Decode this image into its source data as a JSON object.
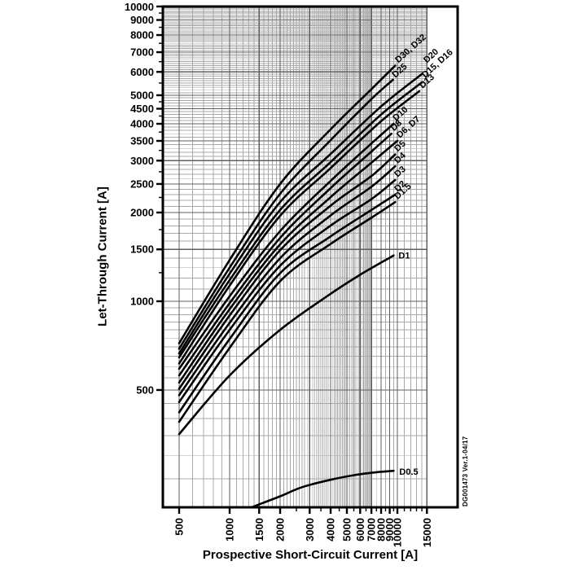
{
  "colors": {
    "background": "#ffffff",
    "curve": "#000000",
    "grid_minor": "#a9a9a9",
    "grid_major": "#5f5f5f",
    "frame": "#000000",
    "text": "#000000"
  },
  "doc_number": "DG001473  Ver.1-04/17",
  "chart_data": {
    "type": "line",
    "title": "",
    "xlabel": "Prospective Short-Circuit Current [A]",
    "ylabel": "Let-Through Current [A]",
    "x_scale": "log",
    "y_scale": "log",
    "xlim": [
      400,
      23000
    ],
    "ylim": [
      200,
      10000
    ],
    "grid_x_extent": [
      400,
      15000
    ],
    "grid": "on",
    "legend_position": "labels-at-curve-ends",
    "x_ticks_major": [
      500,
      1000,
      1500,
      2000,
      3000,
      4000,
      5000,
      6000,
      7000,
      8000,
      9000,
      10000,
      15000
    ],
    "x_ticks_minor": [
      2500,
      3500,
      4500,
      5500,
      6500,
      7500,
      8500,
      9500,
      11000,
      12000,
      13000,
      14000
    ],
    "y_ticks_major": [
      500,
      1000,
      1500,
      2000,
      2500,
      3000,
      3500,
      4000,
      4500,
      5000,
      6000,
      7000,
      8000,
      9000,
      10000
    ],
    "y_ticks_minor": [
      1250,
      1750,
      2250,
      2750,
      3250,
      3750,
      4250,
      4750,
      5500,
      6500,
      7500,
      8500,
      9500
    ],
    "x_grid_minor": [
      {
        "from": 400,
        "to": 7000,
        "step": 100
      },
      {
        "from": 7500,
        "to": 10000,
        "step": 500
      },
      {
        "from": 11000,
        "to": 15000,
        "step": 1000
      }
    ],
    "y_grid_minor": [
      {
        "from": 250,
        "to": 1000,
        "step": 50
      },
      {
        "from": 1100,
        "to": 10000,
        "step": 100
      }
    ],
    "series": [
      {
        "name": "D30-D32",
        "label": "D30, D32",
        "label_rotation": -42,
        "label_dx": 4,
        "label_dy": -3,
        "points": [
          [
            500,
            720
          ],
          [
            1000,
            1380
          ],
          [
            2000,
            2500
          ],
          [
            4000,
            3830
          ],
          [
            7000,
            5240
          ],
          [
            9700,
            6300
          ]
        ]
      },
      {
        "name": "D25",
        "label": "D25",
        "label_rotation": -42,
        "label_dx": 3,
        "label_dy": -2,
        "points": [
          [
            500,
            690
          ],
          [
            1000,
            1300
          ],
          [
            2000,
            2315
          ],
          [
            4000,
            3520
          ],
          [
            7000,
            4850
          ],
          [
            9400,
            5640
          ]
        ]
      },
      {
        "name": "D20",
        "label": "D20",
        "label_rotation": -42,
        "label_dx": 6,
        "label_dy": -13,
        "points": [
          [
            500,
            665
          ],
          [
            1000,
            1240
          ],
          [
            2000,
            2170
          ],
          [
            4000,
            3160
          ],
          [
            8000,
            4580
          ],
          [
            14000,
            5900
          ]
        ]
      },
      {
        "name": "D15-D16",
        "label": "D15, D16",
        "label_rotation": -42,
        "label_dx": 4,
        "label_dy": -5,
        "points": [
          [
            500,
            645
          ],
          [
            1000,
            1180
          ],
          [
            2000,
            2040
          ],
          [
            4000,
            2965
          ],
          [
            8000,
            4300
          ],
          [
            14000,
            5530
          ]
        ]
      },
      {
        "name": "D13",
        "label": "D13",
        "label_rotation": -42,
        "label_dx": 4,
        "label_dy": -3,
        "points": [
          [
            500,
            615
          ],
          [
            1000,
            1130
          ],
          [
            2000,
            1950
          ],
          [
            4000,
            2830
          ],
          [
            8000,
            4080
          ],
          [
            13500,
            5160
          ]
        ]
      },
      {
        "name": "D10",
        "label": "D10",
        "label_rotation": -42,
        "label_dx": 3,
        "label_dy": -3,
        "points": [
          [
            500,
            590
          ],
          [
            1000,
            1040
          ],
          [
            2000,
            1730
          ],
          [
            4000,
            2560
          ],
          [
            7000,
            3430
          ],
          [
            9500,
            4000
          ]
        ]
      },
      {
        "name": "D8",
        "label": "D8",
        "label_rotation": -42,
        "label_dx": 3,
        "label_dy": -3,
        "points": [
          [
            500,
            560
          ],
          [
            1000,
            985
          ],
          [
            2000,
            1640
          ],
          [
            4000,
            2420
          ],
          [
            7000,
            3220
          ],
          [
            9200,
            3700
          ]
        ]
      },
      {
        "name": "D6-D7",
        "label": "D6, D7",
        "label_rotation": -42,
        "label_dx": 3,
        "label_dy": -3,
        "points": [
          [
            500,
            530
          ],
          [
            1000,
            940
          ],
          [
            2000,
            1560
          ],
          [
            4000,
            2255
          ],
          [
            7000,
            2950
          ],
          [
            10000,
            3500
          ]
        ]
      },
      {
        "name": "D5",
        "label": "D5",
        "label_rotation": -42,
        "label_dx": 3,
        "label_dy": -3,
        "points": [
          [
            500,
            505
          ],
          [
            1000,
            895
          ],
          [
            2000,
            1490
          ],
          [
            4000,
            2110
          ],
          [
            7000,
            2660
          ],
          [
            9700,
            3150
          ]
        ]
      },
      {
        "name": "D4",
        "label": "D4",
        "label_rotation": -42,
        "label_dx": 3,
        "label_dy": -3,
        "points": [
          [
            500,
            480
          ],
          [
            1000,
            845
          ],
          [
            2000,
            1400
          ],
          [
            4000,
            1955
          ],
          [
            7000,
            2445
          ],
          [
            9700,
            2870
          ]
        ]
      },
      {
        "name": "D3",
        "label": "D3",
        "label_rotation": -42,
        "label_dx": 3,
        "label_dy": -3,
        "points": [
          [
            500,
            455
          ],
          [
            1000,
            800
          ],
          [
            2000,
            1320
          ],
          [
            4000,
            1805
          ],
          [
            7000,
            2220
          ],
          [
            9700,
            2580
          ]
        ]
      },
      {
        "name": "D2",
        "label": "D2",
        "label_rotation": -42,
        "label_dx": 3,
        "label_dy": -3,
        "points": [
          [
            500,
            420
          ],
          [
            1000,
            745
          ],
          [
            2000,
            1245
          ],
          [
            4000,
            1660
          ],
          [
            7000,
            2040
          ],
          [
            9700,
            2300
          ]
        ]
      },
      {
        "name": "D1.5",
        "label": "D1.5",
        "label_rotation": -42,
        "label_dx": 3,
        "label_dy": -3,
        "points": [
          [
            500,
            390
          ],
          [
            1000,
            695
          ],
          [
            2000,
            1170
          ],
          [
            4000,
            1565
          ],
          [
            7000,
            1920
          ],
          [
            9700,
            2170
          ]
        ]
      },
      {
        "name": "D1",
        "label": "D1",
        "label_rotation": 0,
        "label_dx": 6,
        "label_dy": 4,
        "points": [
          [
            500,
            354
          ],
          [
            1000,
            560
          ],
          [
            2000,
            800
          ],
          [
            4000,
            1060
          ],
          [
            6000,
            1230
          ],
          [
            9500,
            1430
          ]
        ]
      },
      {
        "name": "D0.5",
        "label": "D0.5",
        "label_rotation": 0,
        "label_dx": 7,
        "label_dy": 5,
        "points": [
          [
            1350,
            200
          ],
          [
            2000,
            218
          ],
          [
            2700,
            234
          ],
          [
            4000,
            248
          ],
          [
            5500,
            257
          ],
          [
            7500,
            263
          ],
          [
            9500,
            266
          ]
        ]
      }
    ]
  }
}
